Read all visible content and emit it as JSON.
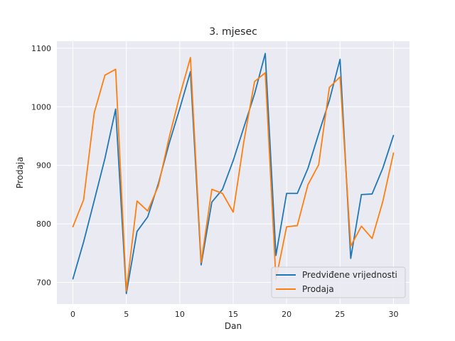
{
  "chart_data": {
    "type": "line",
    "title": "3. mjesec",
    "xlabel": "Dan",
    "ylabel": "Prodaja",
    "xlim": [
      -1.5,
      31.5
    ],
    "ylim": [
      663,
      1112
    ],
    "xticks": [
      0,
      5,
      10,
      15,
      20,
      25,
      30
    ],
    "yticks": [
      700,
      800,
      900,
      1000,
      1100
    ],
    "grid": true,
    "legend_position": "lower-right",
    "x": [
      0,
      1,
      2,
      3,
      4,
      5,
      6,
      7,
      8,
      9,
      10,
      11,
      12,
      13,
      14,
      15,
      16,
      17,
      18,
      19,
      20,
      21,
      22,
      23,
      24,
      25,
      26,
      27,
      28,
      29,
      30
    ],
    "series": [
      {
        "name": "Predviđene vrijednosti",
        "color": "#1f77b4",
        "values": [
          706,
          769,
          840,
          912,
          996,
          681,
          787,
          812,
          869,
          937,
          997,
          1060,
          730,
          837,
          859,
          908,
          965,
          1022,
          1091,
          746,
          852,
          852,
          895,
          954,
          1011,
          1081,
          741,
          850,
          851,
          895,
          951
        ]
      },
      {
        "name": "Prodaja",
        "color": "#ff7f0e",
        "values": [
          795,
          841,
          990,
          1054,
          1064,
          685,
          839,
          822,
          865,
          947,
          1019,
          1084,
          734,
          859,
          852,
          820,
          941,
          1043,
          1058,
          705,
          795,
          797,
          867,
          901,
          1033,
          1051,
          762,
          796,
          775,
          838,
          921
        ]
      }
    ],
    "background": "#eaeaf2",
    "grid_color": "#ffffff",
    "text_color": "#262626"
  }
}
